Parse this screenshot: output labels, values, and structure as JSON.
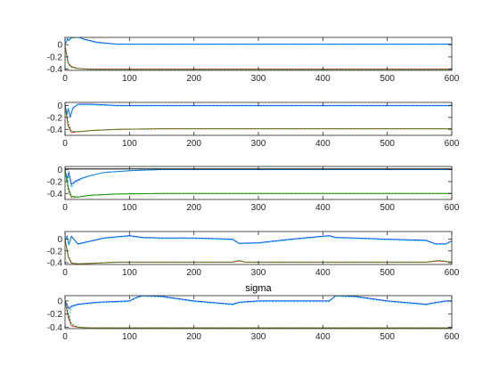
{
  "chart_data": [
    {
      "type": "line",
      "title": "",
      "xlabel": "",
      "ylabel": "",
      "xlim": [
        0,
        600
      ],
      "ylim": [
        -0.42,
        0.12
      ],
      "xticks": [
        "0",
        "100",
        "200",
        "300",
        "400",
        "500",
        "600"
      ],
      "yticks": [
        {
          "v": 0,
          "label": "0"
        },
        {
          "v": -0.2,
          "label": "-0.2"
        },
        {
          "v": -0.4,
          "label": "-0.4"
        }
      ],
      "grid": false,
      "series": [
        {
          "color": "#1f3cff",
          "x": [
            0,
            4,
            6,
            10,
            20,
            30,
            50,
            80,
            600
          ],
          "y": [
            0.0,
            0.1,
            0.07,
            0.12,
            0.13,
            0.09,
            0.04,
            0.01,
            0.01
          ]
        },
        {
          "color": "#00c8c8",
          "x": [
            0,
            4,
            6,
            10,
            20,
            30,
            50,
            80,
            600
          ],
          "y": [
            0.0,
            0.09,
            0.06,
            0.11,
            0.12,
            0.08,
            0.03,
            0.005,
            0.005
          ]
        },
        {
          "color": "#d62728",
          "x": [
            0,
            5,
            10,
            20,
            40,
            600
          ],
          "y": [
            -0.02,
            -0.3,
            -0.36,
            -0.39,
            -0.4,
            -0.4
          ]
        },
        {
          "color": "#00a000",
          "x": [
            0,
            5,
            10,
            20,
            40,
            600
          ],
          "y": [
            -0.03,
            -0.32,
            -0.37,
            -0.39,
            -0.405,
            -0.405
          ]
        }
      ]
    },
    {
      "type": "line",
      "title": "",
      "xlabel": "",
      "ylabel": "",
      "xlim": [
        0,
        600
      ],
      "ylim": [
        -0.5,
        0.05
      ],
      "xticks": [
        "0",
        "100",
        "200",
        "300",
        "400",
        "500",
        "600"
      ],
      "yticks": [
        {
          "v": 0,
          "label": "0"
        },
        {
          "v": -0.2,
          "label": "-0.2"
        },
        {
          "v": -0.4,
          "label": "-0.4"
        }
      ],
      "grid": false,
      "series": [
        {
          "color": "#1f3cff",
          "x": [
            0,
            3,
            5,
            8,
            12,
            20,
            40,
            80,
            600
          ],
          "y": [
            0.0,
            -0.15,
            -0.05,
            -0.2,
            -0.05,
            0.02,
            0.02,
            0.0,
            0.0
          ]
        },
        {
          "color": "#00c8c8",
          "x": [
            0,
            3,
            5,
            8,
            12,
            20,
            40,
            80,
            600
          ],
          "y": [
            0.0,
            -0.12,
            -0.04,
            -0.18,
            -0.03,
            0.01,
            0.01,
            -0.01,
            -0.01
          ]
        },
        {
          "color": "#d62728",
          "x": [
            0,
            5,
            10,
            20,
            40,
            80,
            150,
            600
          ],
          "y": [
            0.0,
            -0.35,
            -0.45,
            -0.44,
            -0.42,
            -0.4,
            -0.39,
            -0.39
          ]
        },
        {
          "color": "#00a000",
          "x": [
            0,
            5,
            10,
            20,
            40,
            80,
            150,
            600
          ],
          "y": [
            0.0,
            -0.3,
            -0.43,
            -0.44,
            -0.42,
            -0.4,
            -0.39,
            -0.39
          ]
        }
      ]
    },
    {
      "type": "line",
      "title": "",
      "xlabel": "",
      "ylabel": "",
      "xlim": [
        0,
        600
      ],
      "ylim": [
        -0.5,
        0.05
      ],
      "xticks": [
        "0",
        "100",
        "200",
        "300",
        "400",
        "500",
        "600"
      ],
      "yticks": [
        {
          "v": 0,
          "label": "0"
        },
        {
          "v": -0.2,
          "label": "-0.2"
        },
        {
          "v": -0.4,
          "label": "-0.4"
        }
      ],
      "grid": false,
      "series": [
        {
          "color": "#1f3cff",
          "x": [
            0,
            3,
            6,
            10,
            15,
            25,
            40,
            60,
            100,
            150,
            600
          ],
          "y": [
            0.0,
            -0.15,
            -0.05,
            -0.25,
            -0.2,
            -0.15,
            -0.1,
            -0.05,
            -0.02,
            0.0,
            0.0
          ]
        },
        {
          "color": "#00c8c8",
          "x": [
            0,
            3,
            6,
            10,
            15,
            25,
            40,
            60,
            100,
            150,
            600
          ],
          "y": [
            0.0,
            -0.2,
            -0.1,
            -0.3,
            -0.22,
            -0.16,
            -0.1,
            -0.05,
            -0.02,
            0.0,
            0.0
          ]
        },
        {
          "color": "#000000",
          "x": [
            0,
            600
          ],
          "y": [
            0.01,
            0.01
          ]
        },
        {
          "color": "#d62728",
          "x": [
            0,
            5,
            10,
            20,
            40,
            80,
            150,
            600
          ],
          "y": [
            0.0,
            -0.35,
            -0.47,
            -0.46,
            -0.43,
            -0.41,
            -0.4,
            -0.4
          ]
        },
        {
          "color": "#00a000",
          "x": [
            0,
            5,
            10,
            20,
            40,
            80,
            150,
            600
          ],
          "y": [
            0.0,
            -0.3,
            -0.45,
            -0.46,
            -0.43,
            -0.41,
            -0.4,
            -0.4
          ]
        }
      ]
    },
    {
      "type": "line",
      "title": "",
      "xlabel": "",
      "ylabel": "",
      "xlim": [
        0,
        600
      ],
      "ylim": [
        -0.43,
        0.13
      ],
      "xticks": [
        "0",
        "100",
        "200",
        "300",
        "400",
        "500",
        "600"
      ],
      "yticks": [
        {
          "v": 0,
          "label": "0"
        },
        {
          "v": -0.2,
          "label": "-0.2"
        },
        {
          "v": -0.4,
          "label": "-0.4"
        }
      ],
      "grid": false,
      "series": [
        {
          "color": "#1f3cff",
          "x": [
            0,
            3,
            6,
            10,
            20,
            40,
            60,
            90,
            100,
            120,
            150,
            200,
            260,
            270,
            300,
            350,
            400,
            410,
            420,
            450,
            500,
            560,
            575,
            590,
            600
          ],
          "y": [
            0.0,
            0.05,
            -0.1,
            0.05,
            -0.08,
            -0.03,
            0.02,
            0.05,
            0.06,
            0.03,
            0.02,
            0.02,
            0.0,
            -0.07,
            -0.06,
            0.0,
            0.05,
            0.06,
            0.03,
            0.02,
            0.0,
            -0.02,
            -0.08,
            -0.08,
            -0.03
          ]
        },
        {
          "color": "#00c8c8",
          "x": [
            0,
            3,
            6,
            10,
            20,
            40,
            60,
            90,
            100,
            120,
            150,
            200,
            260,
            270,
            300,
            350,
            400,
            410,
            420,
            450,
            500,
            560,
            575,
            590,
            600
          ],
          "y": [
            0.0,
            0.04,
            -0.11,
            0.04,
            -0.09,
            -0.04,
            0.01,
            0.04,
            0.05,
            0.02,
            0.01,
            0.01,
            -0.01,
            -0.08,
            -0.07,
            -0.01,
            0.04,
            0.05,
            0.02,
            0.01,
            -0.01,
            -0.03,
            -0.09,
            -0.09,
            -0.04
          ]
        },
        {
          "color": "#d62728",
          "x": [
            0,
            5,
            10,
            20,
            40,
            80,
            150,
            260,
            270,
            280,
            400,
            560,
            580,
            600
          ],
          "y": [
            0.0,
            -0.3,
            -0.41,
            -0.42,
            -0.41,
            -0.39,
            -0.39,
            -0.39,
            -0.37,
            -0.39,
            -0.39,
            -0.39,
            -0.37,
            -0.39
          ]
        },
        {
          "color": "#00a000",
          "x": [
            0,
            5,
            10,
            20,
            40,
            80,
            150,
            260,
            270,
            280,
            400,
            560,
            580,
            600
          ],
          "y": [
            0.0,
            -0.28,
            -0.4,
            -0.42,
            -0.41,
            -0.39,
            -0.39,
            -0.39,
            -0.36,
            -0.39,
            -0.39,
            -0.39,
            -0.36,
            -0.39
          ]
        }
      ]
    },
    {
      "type": "line",
      "title": "sigma",
      "xlabel": "",
      "ylabel": "",
      "xlim": [
        0,
        600
      ],
      "ylim": [
        -0.42,
        0.08
      ],
      "xticks": [
        "0",
        "100",
        "200",
        "300",
        "400",
        "500",
        "600"
      ],
      "yticks": [
        {
          "v": 0,
          "label": "0"
        },
        {
          "v": -0.2,
          "label": "-0.2"
        },
        {
          "v": -0.4,
          "label": "-0.4"
        }
      ],
      "grid": false,
      "series": [
        {
          "color": "#1f3cff",
          "x": [
            0,
            3,
            6,
            10,
            20,
            50,
            100,
            110,
            120,
            150,
            200,
            260,
            270,
            300,
            350,
            410,
            420,
            450,
            500,
            560,
            590,
            600
          ],
          "y": [
            0.0,
            -0.05,
            -0.12,
            -0.08,
            -0.05,
            -0.02,
            0.0,
            0.05,
            0.08,
            0.07,
            0.0,
            -0.05,
            -0.02,
            0.0,
            0.0,
            0.0,
            0.08,
            0.07,
            0.0,
            -0.05,
            0.0,
            0.0
          ]
        },
        {
          "color": "#00c8c8",
          "x": [
            0,
            3,
            6,
            10,
            20,
            50,
            100,
            110,
            120,
            150,
            200,
            260,
            270,
            300,
            350,
            410,
            420,
            450,
            500,
            560,
            590,
            600
          ],
          "y": [
            0.0,
            -0.08,
            -0.28,
            -0.1,
            -0.06,
            -0.03,
            -0.01,
            0.04,
            0.07,
            0.06,
            -0.01,
            -0.06,
            -0.03,
            -0.01,
            -0.01,
            -0.01,
            0.07,
            0.06,
            -0.01,
            -0.06,
            -0.01,
            -0.01
          ]
        },
        {
          "color": "#d62728",
          "x": [
            0,
            5,
            10,
            20,
            40,
            100,
            600
          ],
          "y": [
            0.0,
            -0.25,
            -0.38,
            -0.4,
            -0.41,
            -0.41,
            -0.41
          ]
        },
        {
          "color": "#00a000",
          "x": [
            0,
            5,
            10,
            20,
            40,
            100,
            600
          ],
          "y": [
            0.0,
            -0.2,
            -0.35,
            -0.4,
            -0.41,
            -0.41,
            -0.41
          ]
        }
      ]
    }
  ]
}
